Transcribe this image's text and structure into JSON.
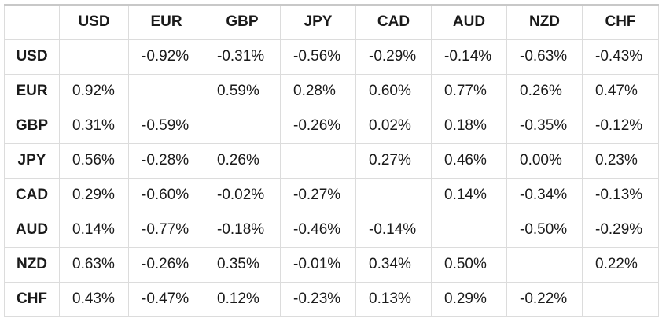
{
  "chart_data": {
    "type": "heatmap",
    "columns": [
      "USD",
      "EUR",
      "GBP",
      "JPY",
      "CAD",
      "AUD",
      "NZD",
      "CHF"
    ],
    "rows": [
      {
        "label": "USD",
        "cells": [
          "",
          "-0.92%",
          "-0.31%",
          "-0.56%",
          "-0.29%",
          "-0.14%",
          "-0.63%",
          "-0.43%"
        ]
      },
      {
        "label": "EUR",
        "cells": [
          "0.92%",
          "",
          "0.59%",
          "0.28%",
          "0.60%",
          "0.77%",
          "0.26%",
          "0.47%"
        ]
      },
      {
        "label": "GBP",
        "cells": [
          "0.31%",
          "-0.59%",
          "",
          "-0.26%",
          "0.02%",
          "0.18%",
          "-0.35%",
          "-0.12%"
        ]
      },
      {
        "label": "JPY",
        "cells": [
          "0.56%",
          "-0.28%",
          "0.26%",
          "",
          "0.27%",
          "0.46%",
          "0.00%",
          "0.23%"
        ]
      },
      {
        "label": "CAD",
        "cells": [
          "0.29%",
          "-0.60%",
          "-0.02%",
          "-0.27%",
          "",
          "0.14%",
          "-0.34%",
          "-0.13%"
        ]
      },
      {
        "label": "AUD",
        "cells": [
          "0.14%",
          "-0.77%",
          "-0.18%",
          "-0.46%",
          "-0.14%",
          "",
          "-0.50%",
          "-0.29%"
        ]
      },
      {
        "label": "NZD",
        "cells": [
          "0.63%",
          "-0.26%",
          "0.35%",
          "-0.01%",
          "0.34%",
          "0.50%",
          "",
          "0.22%"
        ]
      },
      {
        "label": "CHF",
        "cells": [
          "0.43%",
          "-0.47%",
          "0.12%",
          "-0.23%",
          "0.13%",
          "0.29%",
          "-0.22%",
          ""
        ]
      }
    ]
  }
}
